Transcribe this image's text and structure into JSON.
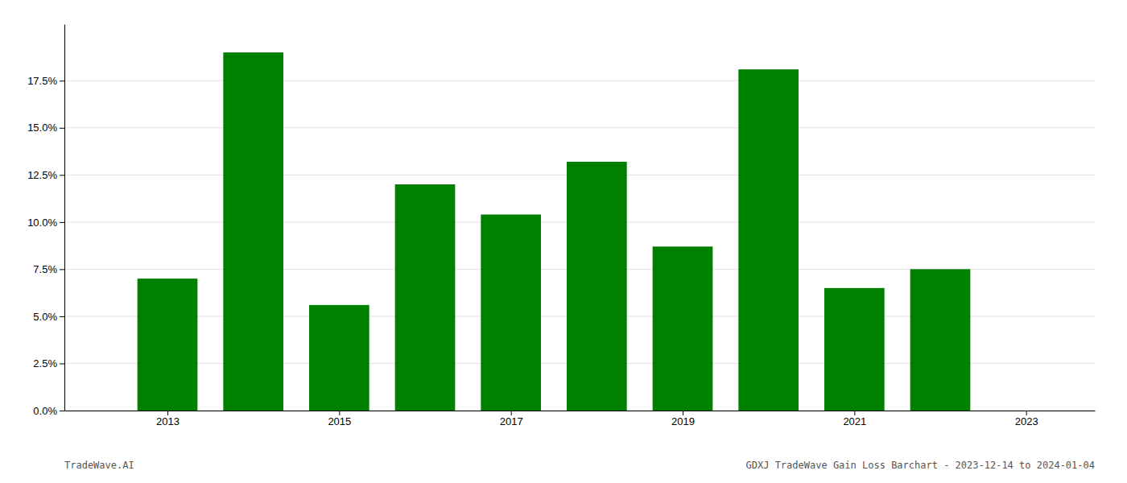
{
  "chart_data": {
    "type": "bar",
    "x": [
      2013,
      2014,
      2015,
      2016,
      2017,
      2018,
      2019,
      2020,
      2021,
      2022
    ],
    "values": [
      0.07,
      0.19,
      0.056,
      0.12,
      0.104,
      0.132,
      0.087,
      0.181,
      0.065,
      0.075
    ],
    "color": "#008000",
    "xlim": [
      2011.8,
      2023.8
    ],
    "xticks": [
      2013,
      2015,
      2017,
      2019,
      2021,
      2023
    ],
    "ylim": [
      0,
      0.205
    ],
    "yticks": [
      {
        "value": 0.0,
        "label": "0.0%"
      },
      {
        "value": 0.025,
        "label": "2.5%"
      },
      {
        "value": 0.05,
        "label": "5.0%"
      },
      {
        "value": 0.075,
        "label": "7.5%"
      },
      {
        "value": 0.1,
        "label": "10.0%"
      },
      {
        "value": 0.125,
        "label": "12.5%"
      },
      {
        "value": 0.15,
        "label": "15.0%"
      },
      {
        "value": 0.175,
        "label": "17.5%"
      }
    ],
    "grid": true,
    "annotations": [
      "TradeWave.AI",
      "GDXJ TradeWave Gain Loss Barchart - 2023-12-14 to 2024-01-04"
    ]
  }
}
